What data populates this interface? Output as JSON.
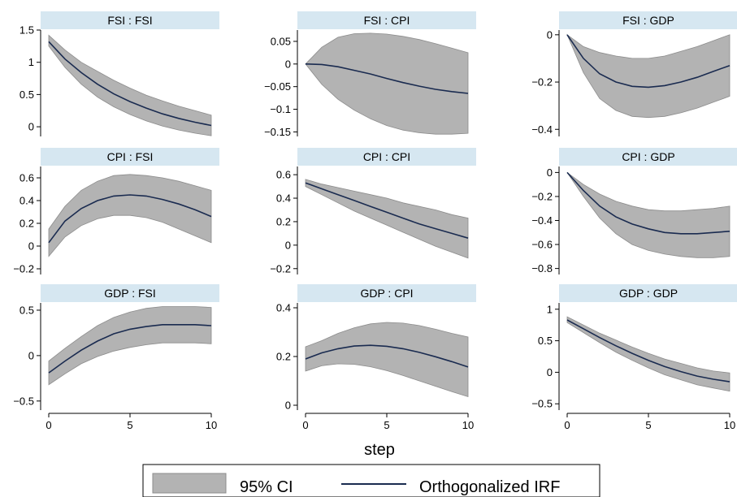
{
  "chart_data": {
    "type": "line",
    "xlabel": "step",
    "legend": {
      "placement": "bottom",
      "entries": [
        {
          "label": "95% CI",
          "kind": "band"
        },
        {
          "label": "Orthogonalized IRF",
          "kind": "line"
        }
      ]
    },
    "colors": {
      "band": "#b3b3b3",
      "band_edge": "#8c8c8c",
      "line": "#1a2b50",
      "header_bg": "#d6e7f1",
      "axis": "#000000"
    },
    "x": [
      0,
      1,
      2,
      3,
      4,
      5,
      6,
      7,
      8,
      9,
      10
    ],
    "xticks": [
      0,
      5,
      10
    ],
    "panels": [
      {
        "title": "FSI : FSI",
        "ylim": [
          -0.15,
          1.5
        ],
        "yticks": [
          0,
          0.5,
          1,
          1.5
        ],
        "yticklabels": [
          "0",
          "0.5",
          "1",
          "1.5"
        ],
        "irf": [
          1.32,
          1.05,
          0.84,
          0.66,
          0.51,
          0.39,
          0.29,
          0.2,
          0.13,
          0.07,
          0.02
        ],
        "lower": [
          1.25,
          0.92,
          0.66,
          0.46,
          0.31,
          0.19,
          0.09,
          0.01,
          -0.05,
          -0.1,
          -0.14
        ],
        "upper": [
          1.42,
          1.19,
          1.0,
          0.86,
          0.72,
          0.6,
          0.49,
          0.4,
          0.32,
          0.25,
          0.18
        ]
      },
      {
        "title": "FSI : CPI",
        "ylim": [
          -0.16,
          0.075
        ],
        "yticks": [
          0.05,
          0,
          -0.05,
          -0.1,
          -0.15
        ],
        "yticklabels": [
          "0.05",
          "0",
          "−0.05",
          "−0.1",
          "−0.15"
        ],
        "irf": [
          0,
          -0.001,
          -0.006,
          -0.014,
          -0.022,
          -0.032,
          -0.041,
          -0.049,
          -0.056,
          -0.061,
          -0.065
        ],
        "lower": [
          0,
          -0.045,
          -0.078,
          -0.102,
          -0.121,
          -0.136,
          -0.146,
          -0.152,
          -0.155,
          -0.155,
          -0.153
        ],
        "upper": [
          0,
          0.037,
          0.059,
          0.067,
          0.068,
          0.066,
          0.061,
          0.054,
          0.045,
          0.035,
          0.025
        ]
      },
      {
        "title": "FSI : GDP",
        "ylim": [
          -0.43,
          0.02
        ],
        "yticks": [
          0,
          -0.2,
          -0.4
        ],
        "yticklabels": [
          "0",
          "−0.2",
          "−0.4"
        ],
        "irf": [
          0,
          -0.1,
          -0.165,
          -0.2,
          -0.218,
          -0.222,
          -0.215,
          -0.2,
          -0.18,
          -0.155,
          -0.13
        ],
        "lower": [
          0,
          -0.16,
          -0.27,
          -0.32,
          -0.345,
          -0.35,
          -0.345,
          -0.33,
          -0.31,
          -0.285,
          -0.26
        ],
        "upper": [
          0,
          -0.05,
          -0.075,
          -0.09,
          -0.1,
          -0.1,
          -0.09,
          -0.07,
          -0.05,
          -0.025,
          0.0
        ]
      },
      {
        "title": "CPI : FSI",
        "ylim": [
          -0.25,
          0.7
        ],
        "yticks": [
          0.6,
          0.4,
          0.2,
          0,
          -0.2
        ],
        "yticklabels": [
          "0.6",
          "0.4",
          "0.2",
          "0",
          "−0.2"
        ],
        "irf": [
          0.03,
          0.22,
          0.33,
          0.4,
          0.44,
          0.45,
          0.44,
          0.41,
          0.37,
          0.32,
          0.26
        ],
        "lower": [
          -0.09,
          0.08,
          0.18,
          0.24,
          0.27,
          0.27,
          0.25,
          0.21,
          0.15,
          0.09,
          0.03
        ],
        "upper": [
          0.15,
          0.35,
          0.49,
          0.57,
          0.62,
          0.63,
          0.62,
          0.6,
          0.57,
          0.53,
          0.49
        ]
      },
      {
        "title": "CPI : CPI",
        "ylim": [
          -0.25,
          0.67
        ],
        "yticks": [
          0.6,
          0.4,
          0.2,
          0,
          -0.2
        ],
        "yticklabels": [
          "0.6",
          "0.4",
          "0.2",
          "0",
          "−0.2"
        ],
        "irf": [
          0.53,
          0.48,
          0.43,
          0.38,
          0.33,
          0.28,
          0.23,
          0.18,
          0.14,
          0.1,
          0.06
        ],
        "lower": [
          0.5,
          0.43,
          0.36,
          0.29,
          0.23,
          0.17,
          0.11,
          0.05,
          -0.01,
          -0.06,
          -0.11
        ],
        "upper": [
          0.56,
          0.52,
          0.49,
          0.46,
          0.43,
          0.4,
          0.36,
          0.33,
          0.3,
          0.26,
          0.23
        ]
      },
      {
        "title": "CPI : GDP",
        "ylim": [
          -0.85,
          0.05
        ],
        "yticks": [
          0,
          -0.2,
          -0.4,
          -0.6,
          -0.8
        ],
        "yticklabels": [
          "0",
          "−0.2",
          "−0.4",
          "−0.6",
          "−0.8"
        ],
        "irf": [
          0,
          -0.15,
          -0.28,
          -0.37,
          -0.43,
          -0.47,
          -0.5,
          -0.51,
          -0.51,
          -0.5,
          -0.49
        ],
        "lower": [
          0,
          -0.2,
          -0.38,
          -0.51,
          -0.6,
          -0.65,
          -0.68,
          -0.7,
          -0.71,
          -0.71,
          -0.7
        ],
        "upper": [
          0,
          -0.1,
          -0.18,
          -0.24,
          -0.28,
          -0.31,
          -0.32,
          -0.32,
          -0.31,
          -0.3,
          -0.28
        ]
      },
      {
        "title": "GDP : FSI",
        "ylim": [
          -0.6,
          0.58
        ],
        "yticks": [
          0.5,
          0,
          -0.5
        ],
        "yticklabels": [
          "0.5",
          "0",
          "−0.5"
        ],
        "irf": [
          -0.19,
          -0.06,
          0.06,
          0.16,
          0.24,
          0.29,
          0.32,
          0.34,
          0.34,
          0.34,
          0.33
        ],
        "lower": [
          -0.32,
          -0.2,
          -0.09,
          -0.01,
          0.05,
          0.09,
          0.12,
          0.14,
          0.14,
          0.14,
          0.13
        ],
        "upper": [
          -0.06,
          0.08,
          0.21,
          0.33,
          0.42,
          0.48,
          0.52,
          0.54,
          0.54,
          0.54,
          0.53
        ]
      },
      {
        "title": "GDP : CPI",
        "ylim": [
          -0.02,
          0.42
        ],
        "yticks": [
          0.4,
          0.2,
          0
        ],
        "yticklabels": [
          "0.4",
          "0.2",
          "0"
        ],
        "irf": [
          0.19,
          0.215,
          0.232,
          0.243,
          0.246,
          0.242,
          0.232,
          0.217,
          0.199,
          0.179,
          0.157
        ],
        "lower": [
          0.14,
          0.162,
          0.17,
          0.168,
          0.158,
          0.142,
          0.122,
          0.1,
          0.078,
          0.056,
          0.035
        ],
        "upper": [
          0.24,
          0.265,
          0.295,
          0.318,
          0.334,
          0.34,
          0.337,
          0.327,
          0.312,
          0.295,
          0.28
        ]
      },
      {
        "title": "GDP : GDP",
        "ylim": [
          -0.6,
          1.1
        ],
        "yticks": [
          1,
          0.5,
          0,
          -0.5
        ],
        "yticklabels": [
          "1",
          "0.5",
          "0",
          "−0.5"
        ],
        "irf": [
          0.83,
          0.69,
          0.55,
          0.42,
          0.3,
          0.19,
          0.09,
          0.01,
          -0.06,
          -0.11,
          -0.15
        ],
        "lower": [
          0.79,
          0.63,
          0.47,
          0.32,
          0.19,
          0.07,
          -0.04,
          -0.12,
          -0.2,
          -0.25,
          -0.3
        ],
        "upper": [
          0.88,
          0.75,
          0.62,
          0.51,
          0.4,
          0.3,
          0.21,
          0.14,
          0.07,
          0.02,
          -0.01
        ]
      }
    ]
  }
}
